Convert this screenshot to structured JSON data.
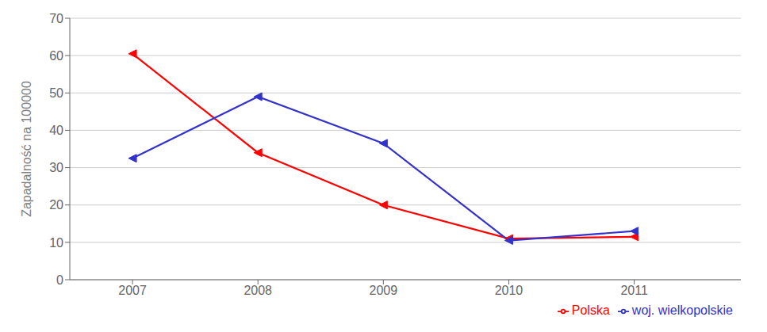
{
  "chart_data": {
    "type": "line",
    "x": [
      2007,
      2008,
      2009,
      2010,
      2011
    ],
    "series": [
      {
        "name": "Polska",
        "color": "#FF0000",
        "values": [
          60.5,
          34.0,
          20.0,
          11.0,
          11.5
        ]
      },
      {
        "name": "woj. wielkopolskie",
        "color": "#3333CC",
        "values": [
          32.5,
          49.0,
          36.5,
          10.5,
          13.0
        ]
      }
    ],
    "ylabel": "Zapadalność na 100000",
    "xlim": [
      2006.5,
      2011.85
    ],
    "xticks": [
      2007,
      2008,
      2009,
      2010,
      2011
    ],
    "ylim": [
      0,
      70
    ],
    "yticks": [
      0,
      10,
      20,
      30,
      40,
      50,
      60,
      70
    ],
    "grid": true,
    "legend": "lower right",
    "marker": "triangle-left"
  }
}
